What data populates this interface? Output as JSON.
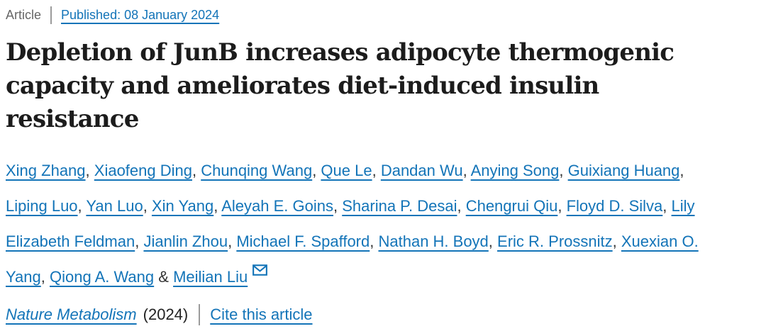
{
  "meta": {
    "article_type": "Article",
    "published_label": "Published: 08 January 2024"
  },
  "title": {
    "full": "Depletion of JunB increases adipocyte thermogenic capacity and ameliorates diet-induced insulin resistance",
    "lines": [
      "Depletion of JunB increases adipocyte thermogenic",
      "capacity and ameliorates diet-induced insulin",
      "resistance"
    ]
  },
  "authors": {
    "names": [
      "Xing Zhang",
      "Xiaofeng Ding",
      "Chunqing Wang",
      "Que Le",
      "Dandan Wu",
      "Anying Song",
      "Guixiang Huang",
      "Liping Luo",
      "Yan Luo",
      "Xin Yang",
      "Aleyah E. Goins",
      "Sharina P. Desai",
      "Chengrui Qiu",
      "Floyd D. Silva",
      "Lily Elizabeth Feldman",
      "Jianlin Zhou",
      "Michael F. Spafford",
      "Nathan H. Boyd",
      "Eric R. Prossnitz",
      "Xuexian O. Yang",
      "Qiong A. Wang",
      "Meilian Liu"
    ],
    "separator": ", ",
    "last_separator": " & ",
    "corresponding_icon": "envelope-icon"
  },
  "footer": {
    "journal": "Nature Metabolism",
    "year": "(2024)",
    "cite_link": "Cite this article"
  },
  "colors": {
    "link_blue": "#1374b8",
    "title_text": "#1c1c1c",
    "muted_gray": "#666666",
    "divider_gray": "#9b9b9b"
  }
}
